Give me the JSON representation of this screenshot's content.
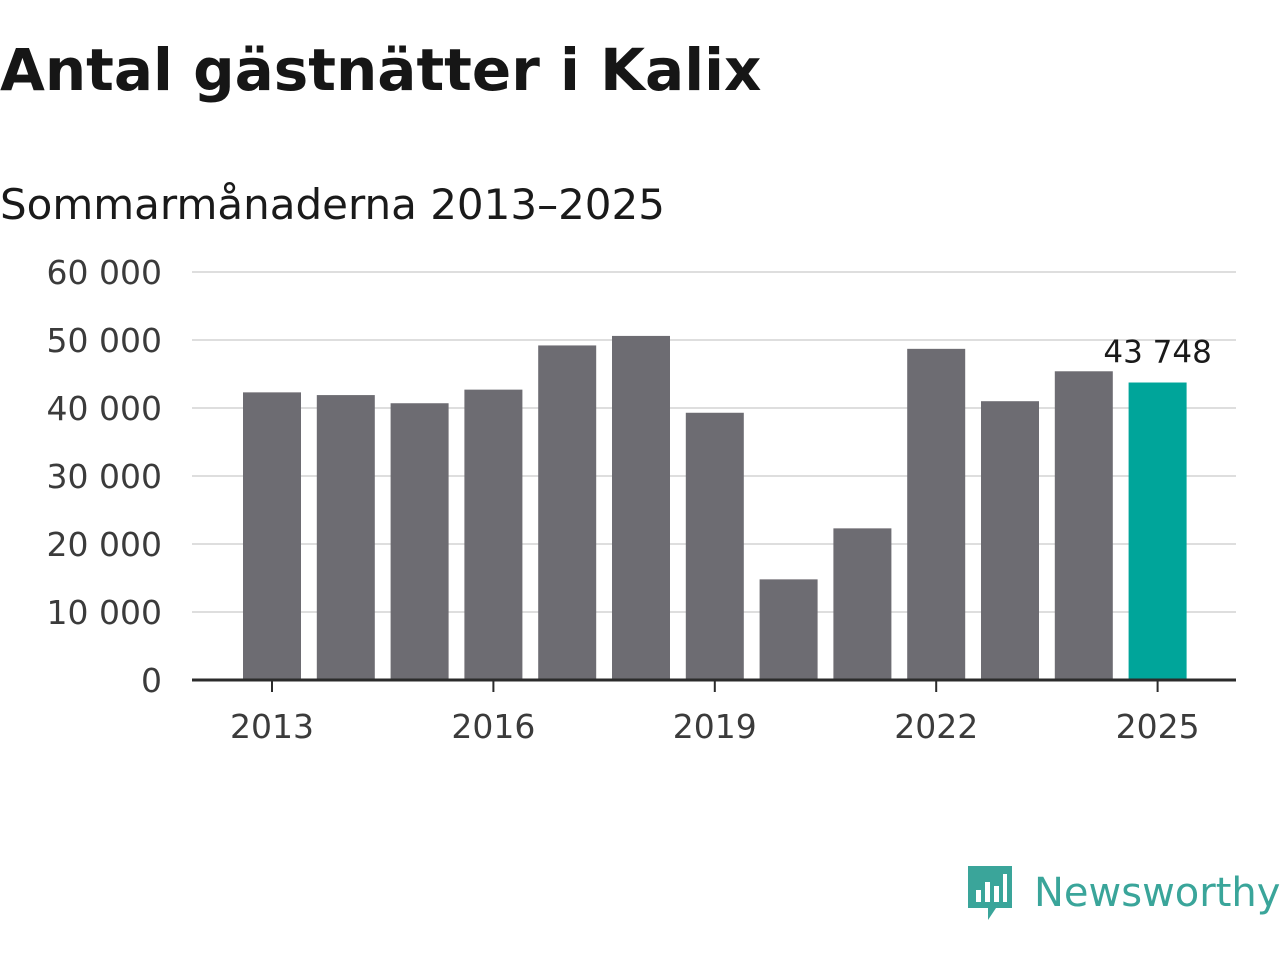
{
  "title": "Antal gästnätter i Kalix",
  "subtitle": "Sommarmånaderna 2013–2025",
  "brand": {
    "name": "Newsworthy",
    "icon": "chart-speech-bubble-icon",
    "color": "#3aa59a"
  },
  "chart_data": {
    "type": "bar",
    "categories": [
      "2013",
      "2014",
      "2015",
      "2016",
      "2017",
      "2018",
      "2019",
      "2020",
      "2021",
      "2022",
      "2023",
      "2024",
      "2025"
    ],
    "values": [
      42300,
      41900,
      40700,
      42700,
      49200,
      50600,
      39300,
      14800,
      22300,
      48700,
      41000,
      45400,
      43748
    ],
    "xticks": [
      "2013",
      "2016",
      "2019",
      "2022",
      "2025"
    ],
    "yticks": [
      0,
      10000,
      20000,
      30000,
      40000,
      50000,
      60000
    ],
    "ytick_labels": [
      "0",
      "10 000",
      "20 000",
      "30 000",
      "40 000",
      "50 000",
      "60 000"
    ],
    "ylim": [
      0,
      60000
    ],
    "data_labels": [
      {
        "category": "2025",
        "text": "43 748"
      }
    ],
    "colors": {
      "bar": "#6d6c72",
      "highlight": "#00a59a",
      "grid": "#dedede",
      "axis": "#2b2b2b"
    },
    "highlight_category": "2025",
    "grid": true
  }
}
